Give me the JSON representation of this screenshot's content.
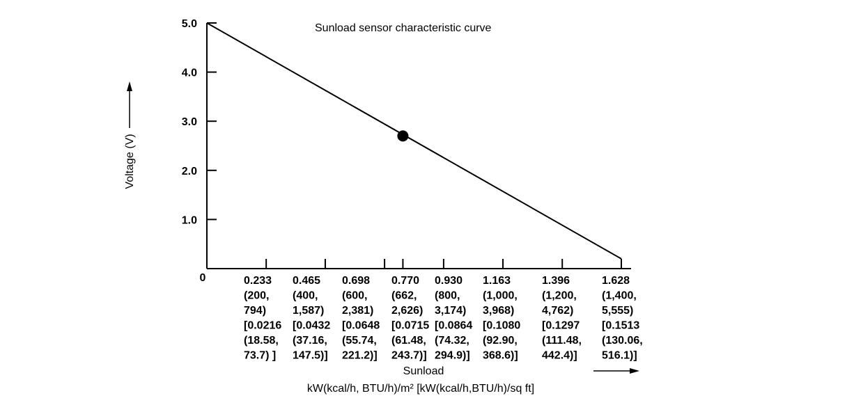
{
  "chart_data": {
    "type": "line",
    "title": "Sunload sensor characteristic curve",
    "xlabel": "Sunload",
    "xunit": "kW(kcal/h, BTU/h)/m² [kW(kcal/h,BTU/h)/sq ft]",
    "ylabel": "Voltage (V)",
    "ylim": [
      0,
      5.0
    ],
    "xlim": [
      0,
      1.628
    ],
    "grid": false,
    "y_ticks": [
      "5.0",
      "4.0",
      "3.0",
      "2.0",
      "1.0"
    ],
    "y_tick_values": [
      5.0,
      4.0,
      3.0,
      2.0,
      1.0
    ],
    "x_origin_label": "0",
    "x_ticks": [
      {
        "value": 0.233,
        "lines": [
          "0.233",
          "(200,",
          "794)",
          "[0.0216",
          "(18.58,",
          "73.7) ]"
        ]
      },
      {
        "value": 0.465,
        "lines": [
          "0.465",
          "(400,",
          "1,587)",
          "[0.0432",
          "(37.16,",
          "147.5)]"
        ]
      },
      {
        "value": 0.698,
        "lines": [
          "0.698",
          "(600,",
          "2,381)",
          "[0.0648",
          "(55.74,",
          "221.2)]"
        ]
      },
      {
        "value": 0.77,
        "lines": [
          "0.770",
          "(662,",
          "2,626)",
          "[0.0715",
          "(61.48,",
          "243.7)]"
        ]
      },
      {
        "value": 0.93,
        "lines": [
          "0.930",
          "(800,",
          "3,174)",
          "[0.0864",
          "(74.32,",
          "294.9)]"
        ]
      },
      {
        "value": 1.163,
        "lines": [
          "1.163",
          "(1,000,",
          "3,968)",
          "[0.1080",
          "(92.90,",
          "368.6)]"
        ]
      },
      {
        "value": 1.396,
        "lines": [
          "1.396",
          "(1,200,",
          "4,762)",
          "[0.1297",
          "(111.48,",
          "442.4)]"
        ]
      },
      {
        "value": 1.628,
        "lines": [
          "1.628",
          "(1,400,",
          "5,555)",
          "[0.1513",
          "(130.06,",
          "516.1)]"
        ]
      }
    ],
    "series": [
      {
        "x": [
          0,
          1.628
        ],
        "y": [
          5.0,
          0.2
        ]
      }
    ],
    "highlight_point": {
      "x": 0.77,
      "y": 2.7
    }
  }
}
